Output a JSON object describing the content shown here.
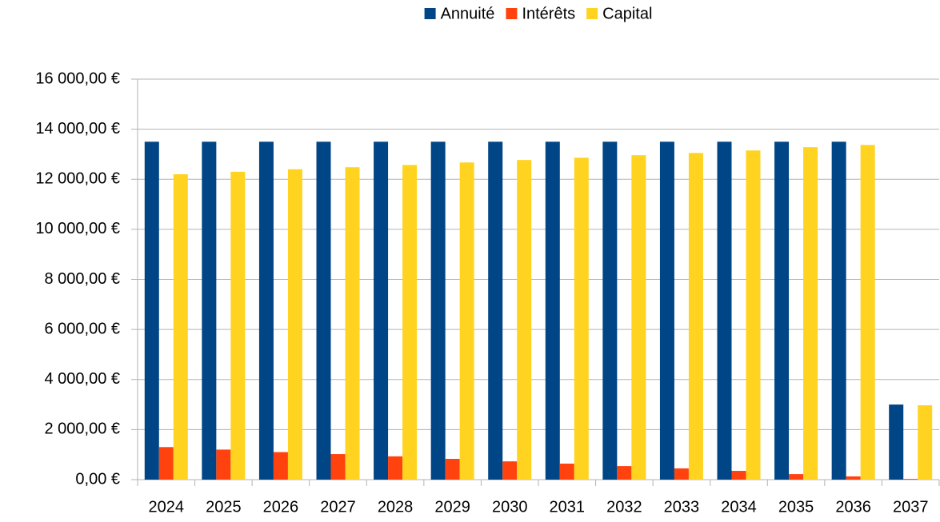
{
  "chart_data": {
    "type": "bar",
    "categories": [
      "2024",
      "2025",
      "2026",
      "2027",
      "2028",
      "2029",
      "2030",
      "2031",
      "2032",
      "2033",
      "2034",
      "2035",
      "2036",
      "2037"
    ],
    "series": [
      {
        "name": "Annuité",
        "color": "#004586",
        "values": [
          13500,
          13500,
          13500,
          13500,
          13500,
          13500,
          13500,
          13500,
          13500,
          13500,
          13500,
          13500,
          13500,
          3000
        ]
      },
      {
        "name": "Intérêts",
        "color": "#ff420e",
        "values": [
          1300,
          1200,
          1100,
          1020,
          930,
          830,
          730,
          640,
          540,
          450,
          350,
          220,
          130,
          30
        ]
      },
      {
        "name": "Capital",
        "color": "#ffd320",
        "values": [
          12200,
          12300,
          12400,
          12480,
          12570,
          12670,
          12770,
          12860,
          12960,
          13050,
          13150,
          13280,
          13370,
          2970
        ]
      }
    ],
    "ylim": [
      0,
      16000
    ],
    "yticks": [
      {
        "value": 0,
        "label": "0,00 €"
      },
      {
        "value": 2000,
        "label": "2 000,00 €"
      },
      {
        "value": 4000,
        "label": "4 000,00 €"
      },
      {
        "value": 6000,
        "label": "6 000,00 €"
      },
      {
        "value": 8000,
        "label": "8 000,00 €"
      },
      {
        "value": 10000,
        "label": "10 000,00 €"
      },
      {
        "value": 12000,
        "label": "12 000,00 €"
      },
      {
        "value": 14000,
        "label": "14 000,00 €"
      },
      {
        "value": 16000,
        "label": "16 000,00 €"
      }
    ],
    "grid": true,
    "legend": "top"
  }
}
